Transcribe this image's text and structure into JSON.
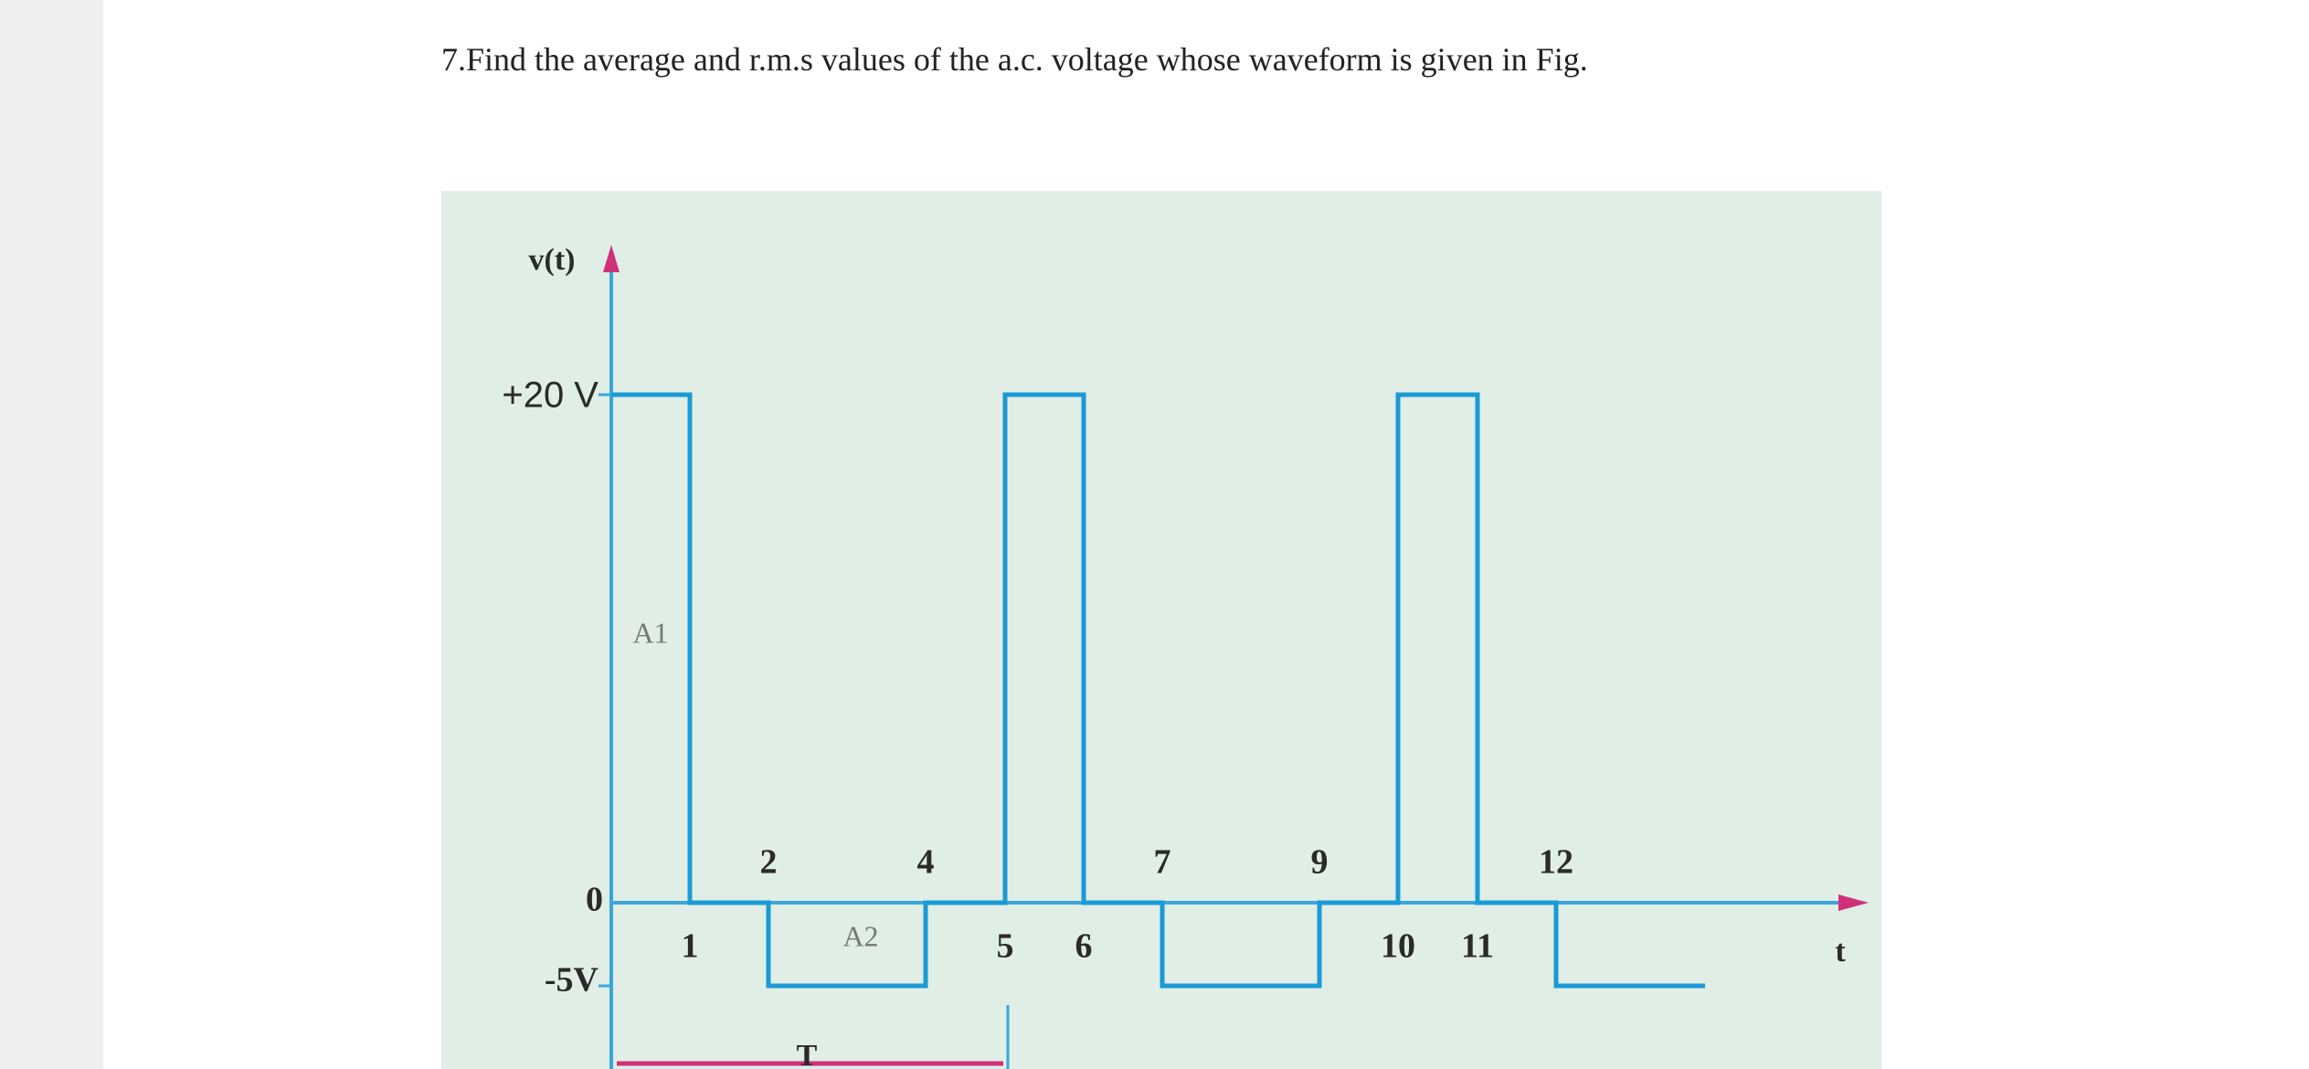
{
  "question": "7.Find the average and r.m.s values of the a.c. voltage whose waveform is given in Fig.",
  "figure": {
    "y_axis_label": "v(t)",
    "x_axis_label": "t",
    "level_labels": [
      "+20 V",
      "0",
      "-5V"
    ],
    "time_labels_above": [
      "2",
      "4",
      "7",
      "9",
      "12"
    ],
    "time_labels_below": [
      "1",
      "5",
      "6",
      "10",
      "11"
    ],
    "area_labels": [
      "A1",
      "A2"
    ],
    "period_label": "T"
  }
}
